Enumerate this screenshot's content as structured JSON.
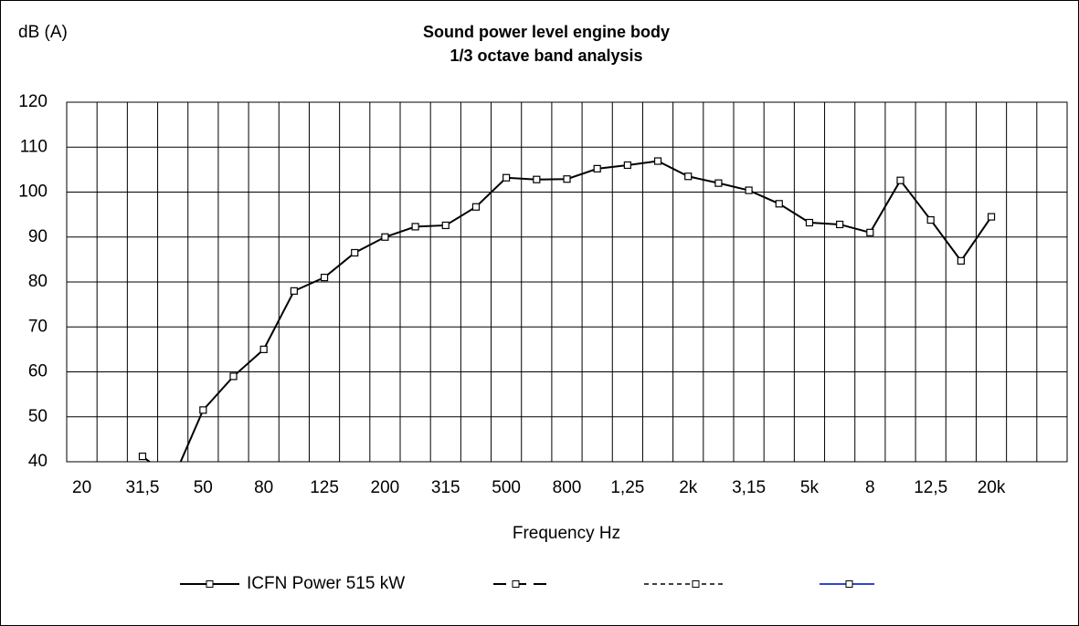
{
  "chart_data": {
    "type": "line",
    "title": "Sound power level engine body",
    "subtitle": "1/3 octave band analysis",
    "y_label": "dB (A)",
    "x_label": "Frequency Hz",
    "categories": [
      "20",
      null,
      "31,5",
      null,
      "50",
      null,
      "80",
      null,
      "125",
      null,
      "200",
      null,
      "315",
      null,
      "500",
      null,
      "800",
      null,
      "1,25",
      null,
      "2k",
      null,
      "3,15",
      null,
      "5k",
      null,
      "8",
      null,
      "12,5",
      null,
      "20k",
      null,
      null
    ],
    "series": [
      {
        "name": "ICFN Power 515 kW",
        "color": "#000000",
        "values": [
          null,
          null,
          41.2,
          36,
          51.5,
          59,
          65,
          78,
          81,
          86.5,
          90,
          92.3,
          92.6,
          96.7,
          103.2,
          102.8,
          102.9,
          105.2,
          106,
          106.9,
          103.5,
          102,
          100.4,
          97.4,
          93.2,
          92.8,
          91,
          102.6,
          93.8,
          84.7,
          94.5,
          null,
          null
        ]
      }
    ],
    "ylim": [
      40,
      120
    ],
    "yticks": [
      40,
      50,
      60,
      70,
      80,
      90,
      100,
      110,
      120
    ],
    "grid": true
  }
}
